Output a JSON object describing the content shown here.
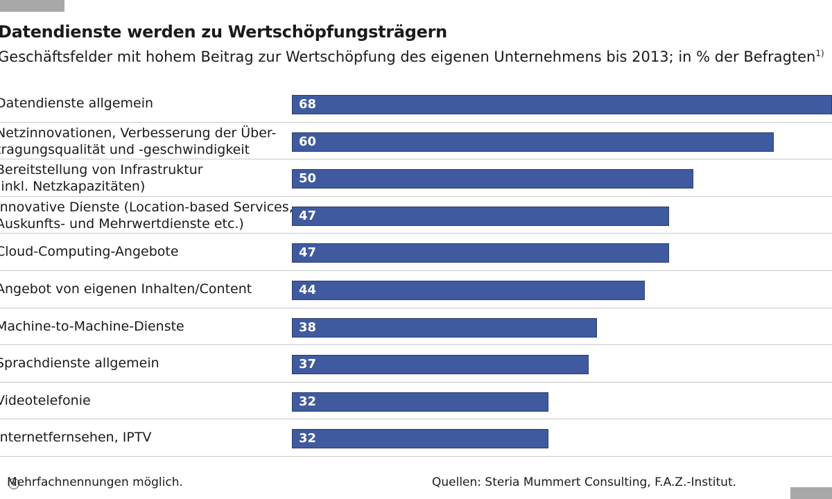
{
  "header": {
    "title": "Datendienste werden zu Wertschöpfungsträgern",
    "subtitle": "Geschäftsfelder mit hohem Beitrag zur Wertschöpfung des eigenen Unternehmens bis 2013; in % der Befragten",
    "subtitle_footnote_mark": "1)"
  },
  "footer": {
    "footnote": "Mehrfachnennungen möglich.",
    "source": "Quellen: Steria Mummert Consulting, F.A.Z.-Institut."
  },
  "colors": {
    "bar": "#3f5a9f",
    "bar_text": "#ffffff"
  },
  "chart_data": {
    "type": "bar",
    "orientation": "horizontal",
    "title": "Datendienste werden zu Wertschöpfungsträgern",
    "subtitle": "Geschäftsfelder mit hohem Beitrag zur Wertschöpfung des eigenen Unternehmens bis 2013; in % der Befragten",
    "categories": [
      [
        "Datendienste allgemein"
      ],
      [
        "Netzinnovationen, Verbesserung der Über-",
        "tragungsqualität und -geschwindigkeit"
      ],
      [
        "Bereitstellung von Infrastruktur",
        "(inkl. Netzkapazitäten)"
      ],
      [
        "Innovative Dienste (Location-based Services,",
        "Auskunfts- und Mehrwertdienste etc.)"
      ],
      [
        "Cloud-Computing-Angebote"
      ],
      [
        "Angebot von eigenen Inhalten/Content"
      ],
      [
        "Machine-to-Machine-Dienste"
      ],
      [
        "Sprachdienste allgemein"
      ],
      [
        "Videotelefonie"
      ],
      [
        "Internetfernsehen, IPTV"
      ]
    ],
    "values": [
      68,
      60,
      50,
      47,
      47,
      44,
      38,
      37,
      32,
      32
    ],
    "value_labels": [
      "68",
      "60",
      "50",
      "47",
      "47",
      "44",
      "38",
      "37",
      "32",
      "32"
    ],
    "xlim": [
      0,
      67.3
    ],
    "grid": false,
    "legend": "none"
  }
}
